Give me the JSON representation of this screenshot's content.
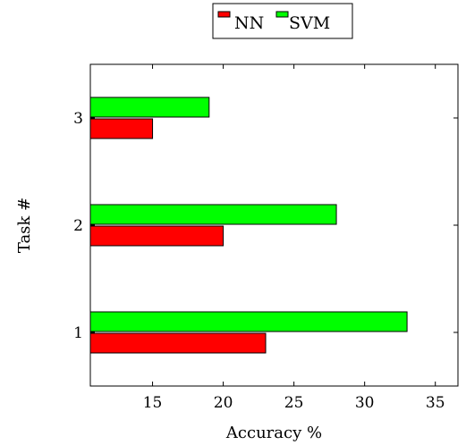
{
  "chart_data": {
    "type": "bar",
    "orientation": "horizontal",
    "categories": [
      "1",
      "2",
      "3"
    ],
    "series": [
      {
        "name": "NN",
        "values": [
          23,
          20,
          15
        ],
        "color": "#ff0000"
      },
      {
        "name": "SVM",
        "values": [
          33,
          28,
          19
        ],
        "color": "#00ff00"
      }
    ],
    "xlabel": "Accuracy %",
    "ylabel": "Task #",
    "xlim": [
      10.6,
      36.6
    ],
    "x_ticks": [
      15,
      20,
      25,
      30,
      35
    ],
    "ylim": [
      0.5,
      3.5
    ],
    "grid": false,
    "legend_position": "top-center"
  }
}
